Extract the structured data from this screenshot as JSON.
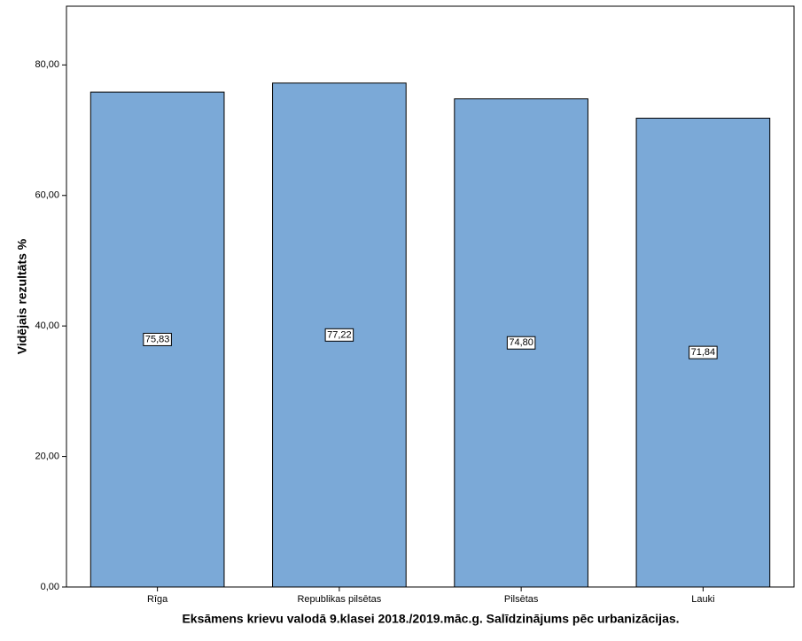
{
  "chart_data": {
    "type": "bar",
    "x_label": "Eksāmens krievu valodā 9.klasei 2018./2019.māc.g. Salīdzinājums pēc urbanizācijas.",
    "y_label": "Vidējais rezultāts %",
    "categories": [
      "Rīga",
      "Republikas pilsētas",
      "Pilsētas",
      "Lauki"
    ],
    "values": [
      75.83,
      77.22,
      74.8,
      71.84
    ],
    "value_labels": [
      "75,83",
      "77,22",
      "74,80",
      "71,84"
    ],
    "color": "#7ba9d7",
    "ylim": [
      0,
      89
    ],
    "yticks": [
      {
        "value": 0,
        "label": "0,00"
      },
      {
        "value": 20,
        "label": "20,00"
      },
      {
        "value": 40,
        "label": "40,00"
      },
      {
        "value": 60,
        "label": "60,00"
      },
      {
        "value": 80,
        "label": "80,00"
      }
    ],
    "grid": false
  }
}
